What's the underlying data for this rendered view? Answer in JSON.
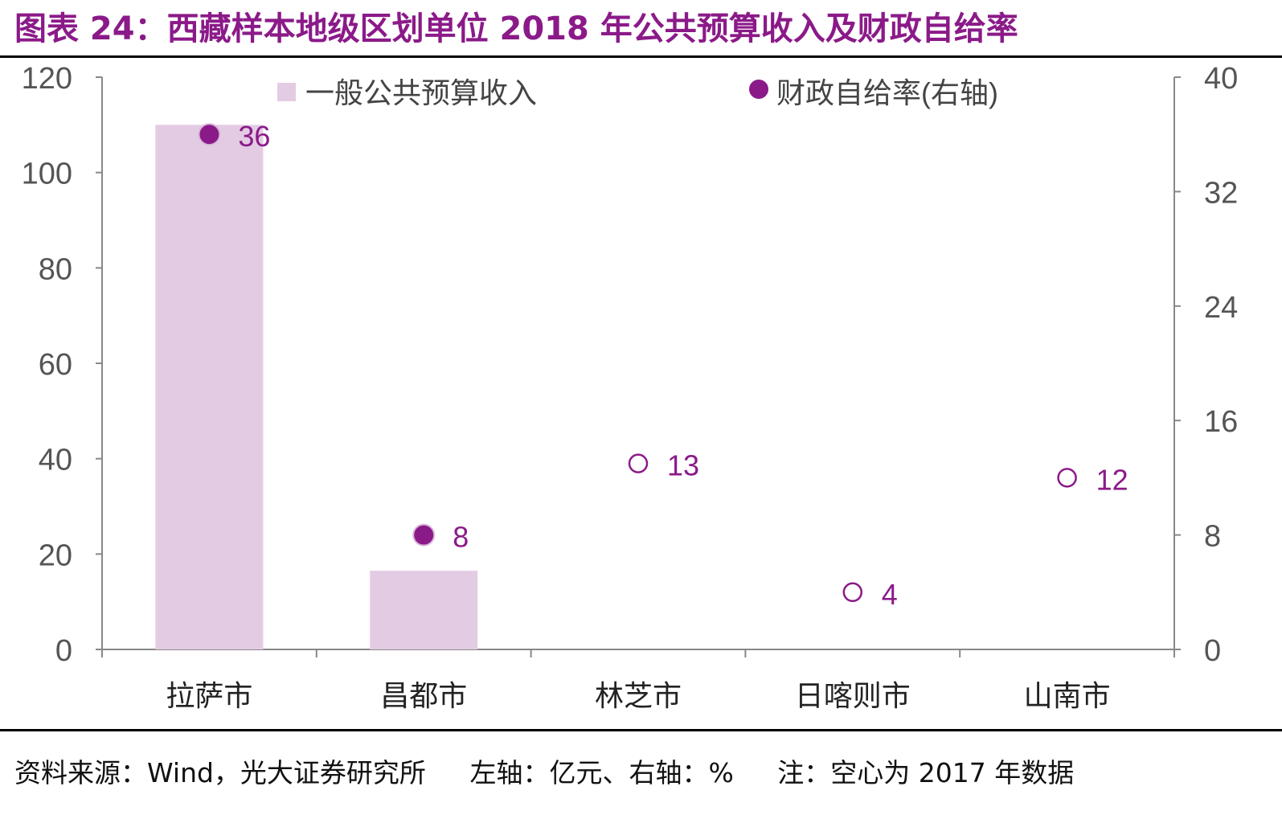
{
  "title": "图表 24：西藏样本地级区划单位 2018 年公共预算收入及财政自给率",
  "footnote": {
    "source": "资料来源：Wind，光大证券研究所",
    "units": "左轴：亿元、右轴：%",
    "note": "注：空心为 2017 年数据"
  },
  "colors": {
    "title": "#8b1a89",
    "bar": "#e3cce3",
    "dot": "#8b1a89",
    "axis": "#888888",
    "tick_label": "#555555"
  },
  "chart_data": {
    "type": "bar",
    "categories": [
      "拉萨市",
      "昌都市",
      "林芝市",
      "日喀则市",
      "山南市"
    ],
    "left_axis": {
      "ylim": [
        0,
        120
      ],
      "ticks": [
        0,
        20,
        40,
        60,
        80,
        100,
        120
      ]
    },
    "right_axis": {
      "ylim": [
        0,
        40
      ],
      "ticks": [
        0,
        8,
        16,
        24,
        32,
        40
      ]
    },
    "legend_position": "top",
    "series": [
      {
        "name": "一般公共预算收入",
        "type": "bar",
        "axis": "left",
        "values": [
          110,
          16.5,
          null,
          null,
          null
        ]
      },
      {
        "name": "财政自给率(右轴)",
        "type": "scatter",
        "axis": "right",
        "values": [
          36,
          8,
          13,
          4,
          12
        ],
        "hollow": [
          false,
          false,
          true,
          true,
          true
        ],
        "labels": [
          "36",
          "8",
          "13",
          "4",
          "12"
        ]
      }
    ]
  }
}
